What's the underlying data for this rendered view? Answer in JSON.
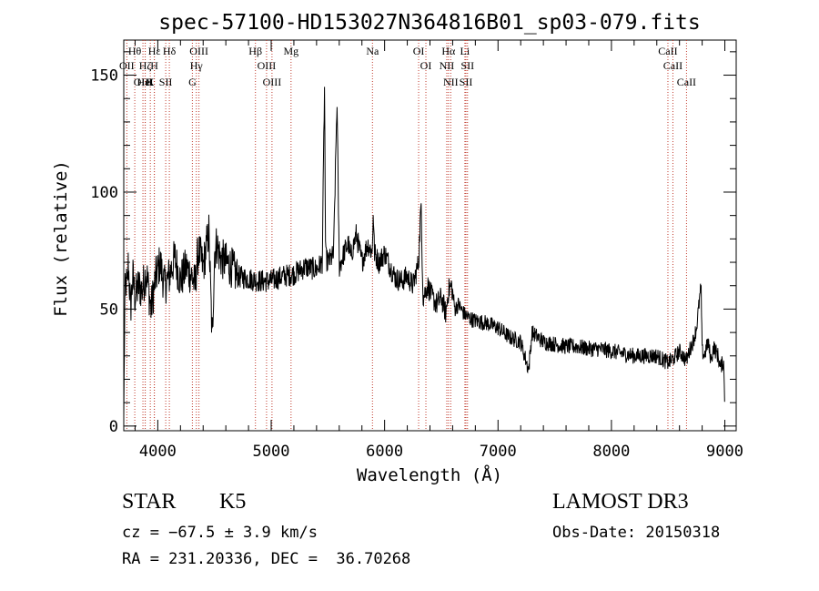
{
  "chart_data": {
    "type": "line",
    "title": "spec-57100-HD153027N364816B01_sp03-079.fits",
    "xlabel": "Wavelength (Å)",
    "ylabel": "Flux (relative)",
    "xlim": [
      3700,
      9100
    ],
    "ylim": [
      -2,
      165
    ],
    "x_ticks": [
      4000,
      5000,
      6000,
      7000,
      8000,
      9000
    ],
    "x_tick_labels": [
      "4000",
      "5000",
      "6000",
      "7000",
      "8000",
      "9000"
    ],
    "y_ticks": [
      0,
      50,
      100,
      150
    ],
    "y_tick_labels": [
      "0",
      "50",
      "100",
      "150"
    ],
    "grid": false,
    "series": [
      {
        "name": "flux",
        "x": [
          3700,
          3710,
          3720,
          3730,
          3740,
          3760,
          3780,
          3800,
          3830,
          3860,
          3900,
          3940,
          3980,
          4020,
          4060,
          4100,
          4150,
          4200,
          4250,
          4300,
          4330,
          4345,
          4360,
          4400,
          4450,
          4480,
          4500,
          4520,
          4550,
          4600,
          4650,
          4700,
          4800,
          4900,
          5000,
          5100,
          5200,
          5300,
          5400,
          5450,
          5470,
          5480,
          5500,
          5550,
          5580,
          5600,
          5650,
          5680,
          5700,
          5750,
          5800,
          5850,
          5890,
          5900,
          5910,
          5950,
          6000,
          6050,
          6100,
          6150,
          6200,
          6250,
          6300,
          6320,
          6340,
          6380,
          6420,
          6460,
          6500,
          6540,
          6563,
          6590,
          6620,
          6650,
          6700,
          6750,
          6800,
          6900,
          7000,
          7100,
          7200,
          7270,
          7300,
          7400,
          7500,
          7600,
          7700,
          7800,
          7900,
          8000,
          8100,
          8200,
          8300,
          8400,
          8500,
          8550,
          8600,
          8660,
          8700,
          8720,
          8750,
          8790,
          8800,
          8820,
          8850,
          8880,
          8900,
          8940,
          8960,
          8990,
          9000
        ],
        "values": [
          4,
          55,
          62,
          58,
          70,
          50,
          64,
          55,
          60,
          58,
          66,
          50,
          63,
          70,
          60,
          64,
          72,
          62,
          68,
          64,
          60,
          70,
          75,
          68,
          83,
          36,
          74,
          78,
          72,
          70,
          68,
          64,
          63,
          62,
          62,
          64,
          65,
          68,
          67,
          70,
          145,
          72,
          70,
          73,
          140,
          68,
          75,
          78,
          72,
          82,
          70,
          78,
          74,
          92,
          74,
          70,
          74,
          68,
          63,
          62,
          64,
          60,
          70,
          95,
          55,
          60,
          55,
          52,
          55,
          48,
          58,
          60,
          50,
          52,
          48,
          46,
          45,
          44,
          42,
          38,
          36,
          24,
          40,
          36,
          35,
          34,
          34,
          33,
          33,
          32,
          31,
          30,
          30,
          30,
          27,
          29,
          32,
          28,
          34,
          36,
          42,
          60,
          32,
          30,
          36,
          28,
          34,
          30,
          25,
          28,
          5
        ]
      }
    ],
    "lines": [
      {
        "label": "Hθ",
        "x": 3797
      },
      {
        "label": "OII",
        "x": 3727
      },
      {
        "label": "OIII",
        "x": 3869
      },
      {
        "label": "Hε",
        "x": 3970
      },
      {
        "label": "Hζ",
        "x": 3889
      },
      {
        "label": "HeI",
        "x": 3889
      },
      {
        "label": "K",
        "x": 3934
      },
      {
        "label": "H",
        "x": 3969
      },
      {
        "label": "Hδ",
        "x": 4102
      },
      {
        "label": "SII",
        "x": 4070
      },
      {
        "label": "OIII",
        "x": 4363
      },
      {
        "label": "Hγ",
        "x": 4340
      },
      {
        "label": "G",
        "x": 4305
      },
      {
        "label": "Hβ",
        "x": 4861
      },
      {
        "label": "OIII",
        "x": 4959
      },
      {
        "label": "OIII",
        "x": 5007
      },
      {
        "label": "Mg",
        "x": 5175
      },
      {
        "label": "Na",
        "x": 5893
      },
      {
        "label": "OI",
        "x": 6300
      },
      {
        "label": "OI",
        "x": 6364
      },
      {
        "label": "Hα",
        "x": 6563
      },
      {
        "label": "NII",
        "x": 6548
      },
      {
        "label": "NII",
        "x": 6583
      },
      {
        "label": "Li",
        "x": 6708
      },
      {
        "label": "SII",
        "x": 6717
      },
      {
        "label": "SII",
        "x": 6731
      },
      {
        "label": "CaII",
        "x": 8498
      },
      {
        "label": "CaII",
        "x": 8542
      },
      {
        "label": "CaII",
        "x": 8662
      }
    ]
  },
  "info": {
    "object_class": "STAR",
    "subclass": "K5",
    "survey": "LAMOST DR3",
    "cz": "cz = −67.5 ± 3.9 km/s",
    "obs_date": "Obs-Date: 20150318",
    "coords": "RA = 231.20336, DEC =  36.70268"
  }
}
